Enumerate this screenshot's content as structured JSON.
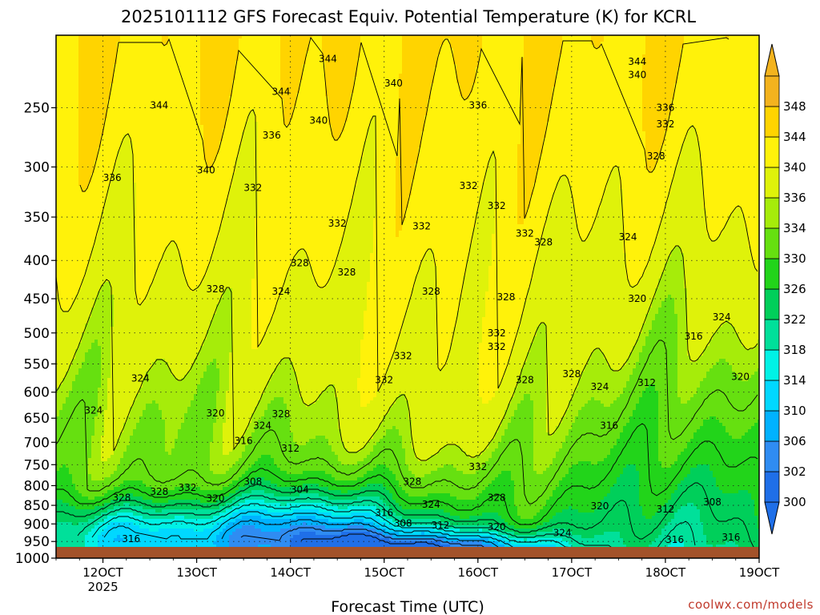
{
  "chart_data": {
    "type": "heatmap",
    "title": "2025101112 GFS Forecast Equiv. Potential Temperature (K) for KCRL",
    "xlabel": "Forecast Time (UTC)",
    "ylabel": "",
    "x_ticks": [
      "12OCT",
      "13OCT",
      "14OCT",
      "15OCT",
      "16OCT",
      "17OCT",
      "18OCT",
      "19OCT"
    ],
    "x_tick_sublabel": "2025",
    "y_ticks": [
      250,
      300,
      350,
      400,
      450,
      500,
      550,
      600,
      650,
      700,
      750,
      800,
      850,
      900,
      950,
      1000
    ],
    "y_axis": {
      "scale": "pressure",
      "top": 200,
      "bottom": 1000,
      "inverted": true
    },
    "x_axis": {
      "start_day": 11.5,
      "end_day": 19.0
    },
    "colorbar": {
      "levels": [
        300,
        302,
        306,
        310,
        314,
        318,
        322,
        326,
        330,
        334,
        336,
        340,
        344,
        348
      ],
      "labels": [
        "300",
        "302",
        "306",
        "310",
        "314",
        "318",
        "322",
        "326",
        "330",
        "334",
        "336",
        "340",
        "344",
        "348"
      ],
      "colors": [
        "#1f6fe8",
        "#2f8cf2",
        "#00b2ff",
        "#00d8ff",
        "#00f2e6",
        "#00e09a",
        "#00cf5a",
        "#22d41a",
        "#66e010",
        "#a6ec0a",
        "#dff20a",
        "#fff20a",
        "#ffd400",
        "#f3b31e"
      ],
      "extend": "both"
    },
    "contour_labels": [
      {
        "t": 14.4,
        "p": 215,
        "v": "344"
      },
      {
        "t": 15.1,
        "p": 232,
        "v": "340"
      },
      {
        "t": 17.7,
        "p": 217,
        "v": "344"
      },
      {
        "t": 17.7,
        "p": 226,
        "v": "340"
      },
      {
        "t": 13.9,
        "p": 238,
        "v": "344"
      },
      {
        "t": 12.6,
        "p": 248,
        "v": "344"
      },
      {
        "t": 16.0,
        "p": 248,
        "v": "336"
      },
      {
        "t": 18.0,
        "p": 250,
        "v": "336"
      },
      {
        "t": 14.3,
        "p": 260,
        "v": "340"
      },
      {
        "t": 18.0,
        "p": 263,
        "v": "332"
      },
      {
        "t": 13.8,
        "p": 272,
        "v": "336"
      },
      {
        "t": 17.9,
        "p": 290,
        "v": "328"
      },
      {
        "t": 13.1,
        "p": 303,
        "v": "340"
      },
      {
        "t": 12.1,
        "p": 310,
        "v": "336"
      },
      {
        "t": 13.6,
        "p": 320,
        "v": "332"
      },
      {
        "t": 15.9,
        "p": 318,
        "v": "332"
      },
      {
        "t": 16.2,
        "p": 338,
        "v": "332"
      },
      {
        "t": 14.5,
        "p": 357,
        "v": "332"
      },
      {
        "t": 15.4,
        "p": 360,
        "v": "332"
      },
      {
        "t": 16.5,
        "p": 368,
        "v": "332"
      },
      {
        "t": 16.7,
        "p": 378,
        "v": "328"
      },
      {
        "t": 17.6,
        "p": 372,
        "v": "324"
      },
      {
        "t": 14.1,
        "p": 403,
        "v": "328"
      },
      {
        "t": 14.6,
        "p": 415,
        "v": "328"
      },
      {
        "t": 13.2,
        "p": 437,
        "v": "328"
      },
      {
        "t": 13.9,
        "p": 440,
        "v": "324"
      },
      {
        "t": 15.5,
        "p": 440,
        "v": "328"
      },
      {
        "t": 16.3,
        "p": 448,
        "v": "328"
      },
      {
        "t": 17.7,
        "p": 450,
        "v": "320"
      },
      {
        "t": 18.6,
        "p": 476,
        "v": "324"
      },
      {
        "t": 16.2,
        "p": 500,
        "v": "332"
      },
      {
        "t": 18.3,
        "p": 505,
        "v": "316"
      },
      {
        "t": 16.2,
        "p": 522,
        "v": "332"
      },
      {
        "t": 15.2,
        "p": 537,
        "v": "332"
      },
      {
        "t": 12.4,
        "p": 575,
        "v": "324"
      },
      {
        "t": 15.0,
        "p": 578,
        "v": "332"
      },
      {
        "t": 16.5,
        "p": 578,
        "v": "328"
      },
      {
        "t": 17.0,
        "p": 567,
        "v": "328"
      },
      {
        "t": 17.3,
        "p": 590,
        "v": "324"
      },
      {
        "t": 17.8,
        "p": 583,
        "v": "312"
      },
      {
        "t": 18.8,
        "p": 572,
        "v": "320"
      },
      {
        "t": 11.9,
        "p": 635,
        "v": "324"
      },
      {
        "t": 13.2,
        "p": 640,
        "v": "320"
      },
      {
        "t": 13.9,
        "p": 642,
        "v": "328"
      },
      {
        "t": 13.7,
        "p": 665,
        "v": "324"
      },
      {
        "t": 17.4,
        "p": 665,
        "v": "316"
      },
      {
        "t": 13.5,
        "p": 697,
        "v": "316"
      },
      {
        "t": 14.0,
        "p": 713,
        "v": "312"
      },
      {
        "t": 16.0,
        "p": 755,
        "v": "332"
      },
      {
        "t": 13.6,
        "p": 790,
        "v": "308"
      },
      {
        "t": 12.9,
        "p": 805,
        "v": "332"
      },
      {
        "t": 14.1,
        "p": 810,
        "v": "304"
      },
      {
        "t": 15.3,
        "p": 790,
        "v": "328"
      },
      {
        "t": 12.6,
        "p": 815,
        "v": "328"
      },
      {
        "t": 12.2,
        "p": 830,
        "v": "328"
      },
      {
        "t": 13.2,
        "p": 832,
        "v": "320"
      },
      {
        "t": 16.2,
        "p": 830,
        "v": "328"
      },
      {
        "t": 15.5,
        "p": 848,
        "v": "324"
      },
      {
        "t": 17.3,
        "p": 852,
        "v": "320"
      },
      {
        "t": 18.5,
        "p": 842,
        "v": "308"
      },
      {
        "t": 18.0,
        "p": 860,
        "v": "312"
      },
      {
        "t": 15.0,
        "p": 870,
        "v": "316"
      },
      {
        "t": 15.2,
        "p": 898,
        "v": "308"
      },
      {
        "t": 15.6,
        "p": 904,
        "v": "312"
      },
      {
        "t": 16.2,
        "p": 908,
        "v": "320"
      },
      {
        "t": 16.9,
        "p": 925,
        "v": "324"
      },
      {
        "t": 12.3,
        "p": 942,
        "v": "316"
      },
      {
        "t": 18.1,
        "p": 945,
        "v": "316"
      },
      {
        "t": 18.7,
        "p": 938,
        "v": "316"
      }
    ]
  },
  "credit": "coolwx.com/models"
}
